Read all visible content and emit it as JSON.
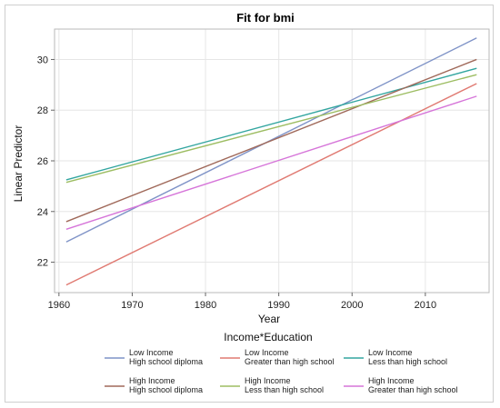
{
  "chart_data": {
    "type": "line",
    "title": "Fit for bmi",
    "xlabel": "Year",
    "ylabel": "Linear Predictor",
    "xlim": [
      1961,
      2017
    ],
    "ylim": [
      20.8,
      31.2
    ],
    "xticks": [
      1960,
      1970,
      1980,
      1990,
      2000,
      2010
    ],
    "yticks": [
      22,
      24,
      26,
      28,
      30
    ],
    "grid": true,
    "legend_title": "Income*Education",
    "legend_position": "bottom",
    "series": [
      {
        "name_line1": "Low Income",
        "name_line2": "High school diploma",
        "color": "#7f93c7",
        "x": [
          1961,
          2017
        ],
        "y": [
          22.8,
          30.85
        ]
      },
      {
        "name_line1": "Low Income",
        "name_line2": "Greater than high school",
        "color": "#e07a72",
        "x": [
          1961,
          2017
        ],
        "y": [
          21.1,
          29.05
        ]
      },
      {
        "name_line1": "Low Income",
        "name_line2": "Less than high school",
        "color": "#33a6a0",
        "x": [
          1961,
          2017
        ],
        "y": [
          25.25,
          29.65
        ]
      },
      {
        "name_line1": "High Income",
        "name_line2": "High school diploma",
        "color": "#a0695a",
        "x": [
          1961,
          2017
        ],
        "y": [
          23.6,
          30.0
        ]
      },
      {
        "name_line1": "High Income",
        "name_line2": "Less than high school",
        "color": "#9dbd62",
        "x": [
          1961,
          2017
        ],
        "y": [
          25.15,
          29.4
        ]
      },
      {
        "name_line1": "High Income",
        "name_line2": "Greater than high school",
        "color": "#d675d9",
        "x": [
          1961,
          2017
        ],
        "y": [
          23.3,
          28.55
        ]
      }
    ]
  }
}
